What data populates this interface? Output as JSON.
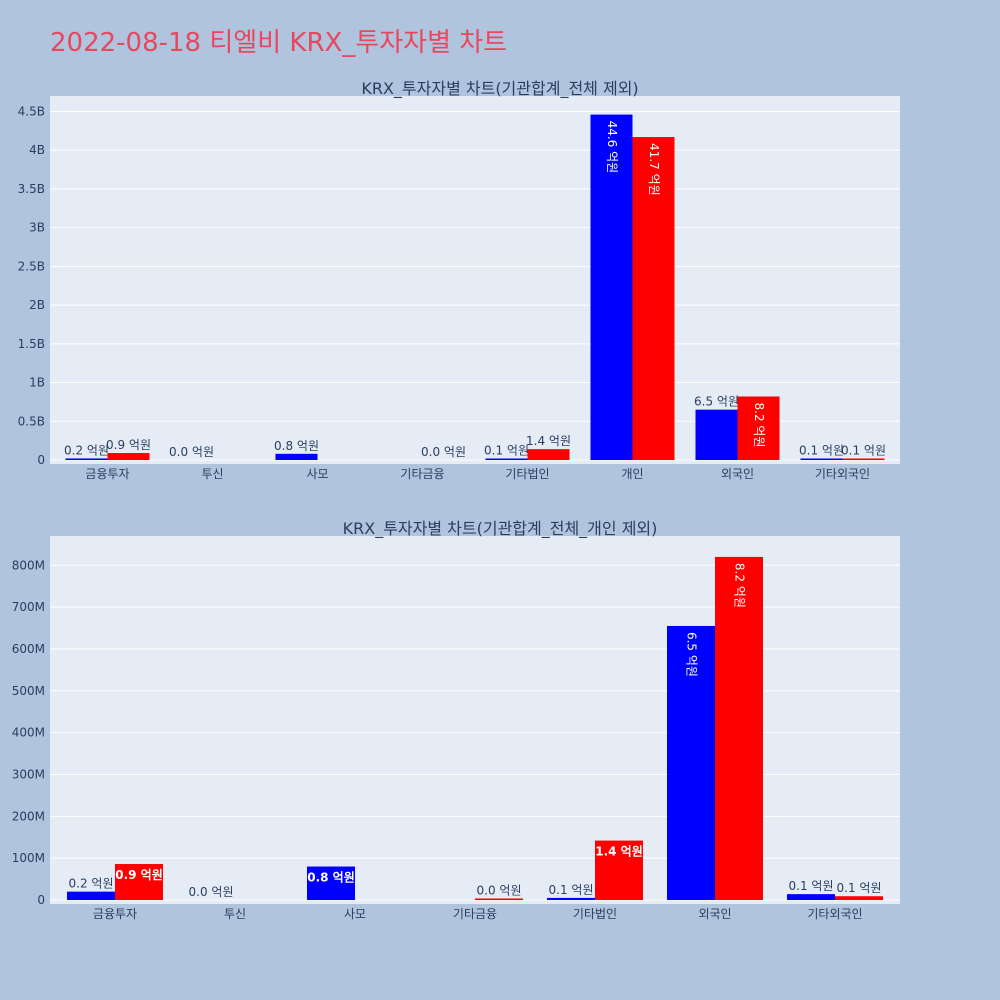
{
  "page": {
    "title": "2022-08-18 티엘비 KRX_투자자별 차트"
  },
  "colors": {
    "background": "#b0c4de",
    "plot_bg": "#e5ecf6",
    "buy": "#0000ff",
    "sell": "#ff0000",
    "title": "#e8485f"
  },
  "chart_data": [
    {
      "type": "bar",
      "title": "KRX_투자자별 차트(기관합계_전체 제외)",
      "categories": [
        "금융투자",
        "투신",
        "사모",
        "기타금융",
        "기타법인",
        "개인",
        "외국인",
        "기타외국인"
      ],
      "series": [
        {
          "values": [
            20000000,
            0,
            80000000,
            null,
            10000000,
            4460000000,
            650000000,
            10000000
          ],
          "labels": [
            "0.2 억원",
            "0.0 억원",
            "0.8 억원",
            "",
            "0.1 억원",
            "44.6 억원",
            "6.5 억원",
            "0.1 억원"
          ]
        },
        {
          "values": [
            90000000,
            null,
            null,
            0,
            140000000,
            4170000000,
            820000000,
            10000000
          ],
          "labels": [
            "0.9 억원",
            "",
            "",
            "0.0 억원",
            "1.4 억원",
            "41.7 억원",
            "8.2 억원",
            "0.1 억원"
          ]
        }
      ],
      "ylim": [
        0,
        4700000000
      ],
      "yticks": [
        0,
        500000000,
        1000000000,
        1500000000,
        2000000000,
        2500000000,
        3000000000,
        3500000000,
        4000000000,
        4500000000
      ],
      "ytick_labels": [
        "0",
        "0.5B",
        "1B",
        "1.5B",
        "2B",
        "2.5B",
        "3B",
        "3.5B",
        "4B",
        "4.5B"
      ],
      "grid": true,
      "barmode": "group"
    },
    {
      "type": "bar",
      "title": "KRX_투자자별 차트(기관합계_전체_개인 제외)",
      "categories": [
        "금융투자",
        "투신",
        "사모",
        "기타금융",
        "기타법인",
        "외국인",
        "기타외국인"
      ],
      "series": [
        {
          "values": [
            20000000,
            0,
            80000000,
            null,
            5000000,
            655000000,
            14000000
          ],
          "labels": [
            "0.2 억원",
            "0.0 억원",
            "0.8 억원",
            "",
            "0.1 억원",
            "6.5 억원",
            "0.1 억원"
          ]
        },
        {
          "values": [
            86000000,
            null,
            null,
            2000000,
            142000000,
            820000000,
            9000000
          ],
          "labels": [
            "0.9 억원",
            "",
            "",
            "0.0 억원",
            "1.4 억원",
            "8.2 억원",
            "0.1 억원"
          ]
        }
      ],
      "ylim": [
        0,
        870000000
      ],
      "yticks": [
        0,
        100000000,
        200000000,
        300000000,
        400000000,
        500000000,
        600000000,
        700000000,
        800000000
      ],
      "ytick_labels": [
        "0",
        "100M",
        "200M",
        "300M",
        "400M",
        "500M",
        "600M",
        "700M",
        "800M"
      ],
      "grid": true,
      "barmode": "group"
    }
  ]
}
